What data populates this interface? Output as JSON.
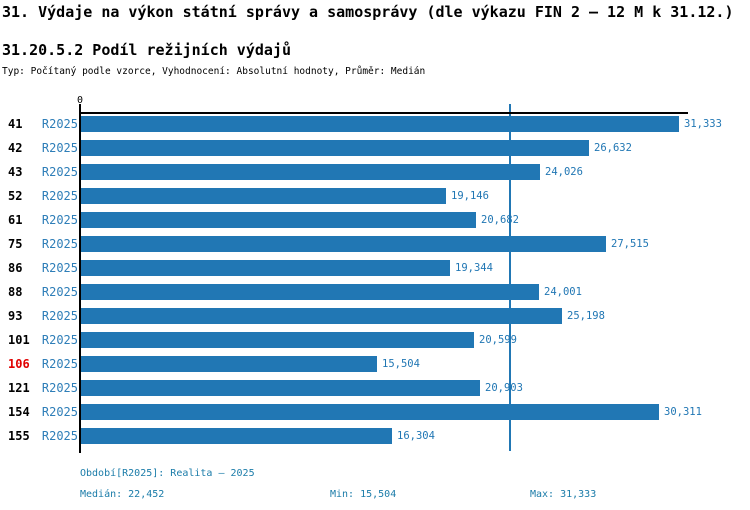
{
  "header": {
    "title": "31. Výdaje na výkon státní správy a samosprávy (dle výkazu FIN 2 – 12 M k 31.12.)",
    "subtitle": "31.20.5.2 Podíl režijních výdajů",
    "meta": "Typ: Počítaný podle vzorce, Vyhodnocení: Absolutní hodnoty, Průměr: Medián"
  },
  "chart_data": {
    "type": "bar",
    "orientation": "horizontal",
    "series_name": "R2025",
    "categories": [
      "41",
      "42",
      "43",
      "52",
      "61",
      "75",
      "86",
      "88",
      "93",
      "101",
      "106",
      "121",
      "154",
      "155"
    ],
    "values": [
      31333,
      26632,
      24026,
      19146,
      20682,
      27515,
      19344,
      24001,
      25198,
      20599,
      15504,
      20903,
      30311,
      16304
    ],
    "value_labels": [
      "31,333",
      "26,632",
      "24,026",
      "19,146",
      "20,682",
      "27,515",
      "19,344",
      "24,001",
      "25,198",
      "20,599",
      "15,504",
      "20,903",
      "30,311",
      "16,304"
    ],
    "highlighted_category": "106",
    "axis_zero_label": "0",
    "xlim": [
      0,
      31333
    ],
    "median_reference_line": 22452,
    "grid": false,
    "colors": {
      "bar": "#2177b4",
      "value_label": "#2177b4",
      "series_label": "#2e7eb8",
      "median_line": "#2177b4",
      "highlight_row": "#e00000",
      "axis": "#000000",
      "footer_text": "#1b7ca9"
    }
  },
  "footer": {
    "period": "Období[R2025]: Realita – 2025",
    "median": "Medián: 22,452",
    "min": "Min: 15,504",
    "max": "Max: 31,333"
  }
}
